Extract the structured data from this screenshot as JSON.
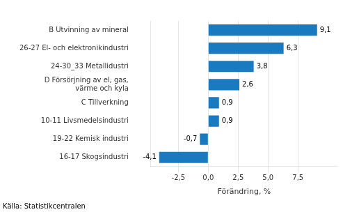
{
  "chart_data": {
    "type": "bar",
    "orientation": "horizontal",
    "categories": [
      "16-17 Skogsindustri",
      "19-22 Kemisk industri",
      "10-11 Livsmedelsindustri",
      "C Tillverkning",
      "D Försörjning av el, gas,\nvärme och kyla",
      "24-30_33 Metallidustri",
      "26-27 El- och elektronikindustri",
      "B Utvinning av mineral"
    ],
    "values": [
      -4.1,
      -0.7,
      0.9,
      0.9,
      2.6,
      3.8,
      6.3,
      9.1
    ],
    "value_labels": [
      "-4,1",
      "-0,7",
      "0,9",
      "0,9",
      "2,6",
      "3,8",
      "6,3",
      "9,1"
    ],
    "data_labels": true,
    "color": "#1a7abf",
    "xlabel": "Förändring, %",
    "xlim": [
      -4.8,
      10.8
    ],
    "xticks": [
      {
        "value": -2.5,
        "label": "-2,5"
      },
      {
        "value": 0.0,
        "label": "0,0"
      },
      {
        "value": 2.5,
        "label": "2,5"
      },
      {
        "value": 5.0,
        "label": "5,0"
      },
      {
        "value": 7.5,
        "label": "7,5"
      }
    ],
    "grid": true,
    "annotations": [
      "Källa: Statistikcentralen"
    ]
  }
}
